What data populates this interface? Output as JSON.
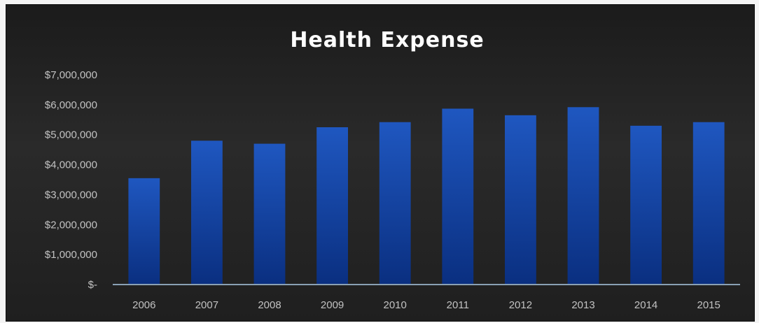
{
  "chart_data": {
    "type": "bar",
    "title": "Health Expense",
    "xlabel": "",
    "ylabel": "",
    "categories": [
      "2006",
      "2007",
      "2008",
      "2009",
      "2010",
      "2011",
      "2012",
      "2013",
      "2014",
      "2015"
    ],
    "values": [
      3550000,
      4800000,
      4700000,
      5250000,
      5420000,
      5870000,
      5650000,
      5920000,
      5300000,
      5420000
    ],
    "ylim": [
      0,
      7000000
    ],
    "yticks": [
      0,
      1000000,
      2000000,
      3000000,
      4000000,
      5000000,
      6000000,
      7000000
    ],
    "ytick_labels": [
      "$-",
      "$1,000,000",
      "$2,000,000",
      "$3,000,000",
      "$4,000,000",
      "$5,000,000",
      "$6,000,000",
      "$7,000,000"
    ],
    "grid": false,
    "legend": "none",
    "colors": {
      "bar": "#0d3c9a",
      "bar_highlight": "#2a62c8",
      "axis": "#8aa0b4",
      "background": "#222222",
      "text": "#c2c2c2",
      "title": "#ffffff"
    }
  }
}
